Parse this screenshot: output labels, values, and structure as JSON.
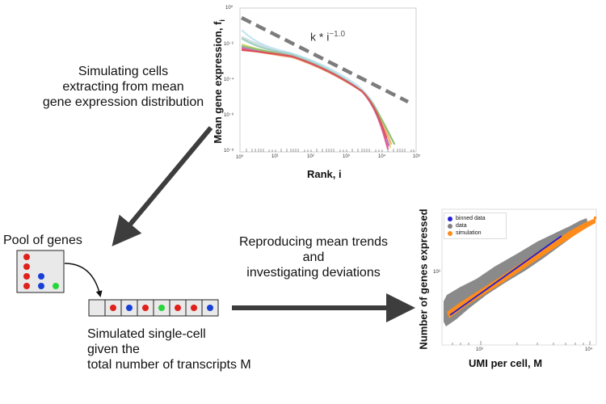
{
  "captions": {
    "simulating": [
      "Simulating cells",
      "extracting from mean",
      "gene expression distribution"
    ],
    "pool": "Pool of genes",
    "reproducing": [
      "Reproducing mean trends",
      "and",
      "investigating deviations"
    ],
    "simulated": [
      "Simulated single-cell",
      "given the",
      "total number of transcripts M"
    ]
  },
  "top_plot": {
    "xlabel": "Rank, i",
    "ylabel": "Mean gene expression, f",
    "ylabel_sub": "i",
    "annotation_base": "k * i",
    "annotation_exp": "−1.0",
    "x_ticks": [
      "10⁰",
      "10¹",
      "10²",
      "10³",
      "10⁴",
      "10⁵"
    ],
    "y_ticks": [
      "10⁰",
      "10⁻²",
      "10⁻⁴",
      "10⁻⁶",
      "10⁻⁸"
    ]
  },
  "bottom_plot": {
    "xlabel": "UMI per cell, M",
    "ylabel": "Number of genes expressed",
    "x_ticks": [
      "10³",
      "10⁴"
    ],
    "y_ticks": [
      "10³"
    ],
    "legend": [
      {
        "label": "binned data",
        "color": "#1f1fd6"
      },
      {
        "label": "data",
        "color": "#808080"
      },
      {
        "label": "simulation",
        "color": "#ff8c1a"
      }
    ]
  },
  "chart_data": [
    {
      "type": "line",
      "xlabel": "Rank, i",
      "ylabel": "Mean gene expression, f_i",
      "x_scale": "log",
      "y_scale": "log",
      "xlim": [
        1,
        100000
      ],
      "ylim": [
        1e-08,
        1
      ],
      "series": [
        {
          "x": [
            1,
            10,
            100,
            1000,
            5000,
            20000,
            25000
          ],
          "y": [
            0.03,
            0.008,
            0.002,
            0.0004,
            5e-05,
            1e-06,
            1e-08
          ]
        }
      ],
      "reference_line": {
        "label": "k * i^-1.0",
        "x": [
          1,
          60000
        ],
        "y": [
          0.2,
          3.3e-06
        ]
      }
    },
    {
      "type": "scatter",
      "xlabel": "UMI per cell, M",
      "ylabel": "Number of genes expressed",
      "x_scale": "log",
      "y_scale": "log",
      "xlim": [
        450,
        14000
      ],
      "ylim": [
        150,
        7000
      ],
      "series": [
        {
          "name": "binned data",
          "x": [
            500,
            1000,
            2000,
            4000,
            8000,
            12000
          ],
          "y": [
            330,
            540,
            880,
            1450,
            2400,
            3100
          ]
        },
        {
          "name": "data",
          "x": [
            500,
            1000,
            2000,
            4000,
            8000,
            12000
          ],
          "y": [
            330,
            540,
            880,
            1450,
            2400,
            3100
          ]
        },
        {
          "name": "simulation",
          "x": [
            500,
            1000,
            2000,
            4000,
            8000,
            12000
          ],
          "y": [
            340,
            550,
            900,
            1480,
            2450,
            3200
          ]
        }
      ],
      "legend_position": "top-left"
    }
  ]
}
